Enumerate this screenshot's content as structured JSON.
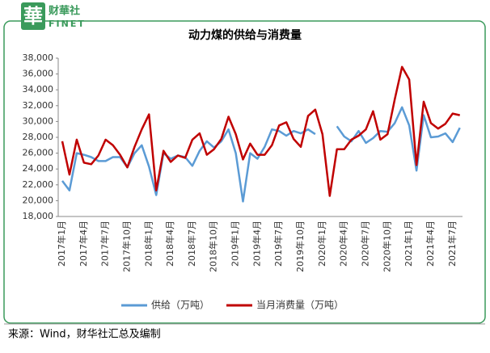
{
  "logo": {
    "mark": "華",
    "name": "财華社",
    "sub": "FINET"
  },
  "chart_data": {
    "type": "line",
    "title": "动力煤的供给与消费量",
    "categories": [
      "2017年1月",
      null,
      null,
      "2017年4月",
      null,
      null,
      "2017年7月",
      null,
      null,
      "2017年10月",
      null,
      null,
      "2018年1月",
      null,
      null,
      "2018年4月",
      null,
      null,
      "2018年7月",
      null,
      null,
      "2018年10月",
      null,
      null,
      "2019年1月",
      null,
      null,
      "2019年4月",
      null,
      null,
      "2019年7月",
      null,
      null,
      "2019年10月",
      null,
      null,
      "2020年1月",
      null,
      null,
      "2020年4月",
      null,
      null,
      "2020年7月",
      null,
      null,
      "2020年10月",
      null,
      null,
      "2021年1月",
      null,
      null,
      "2021年4月",
      null,
      null,
      "2021年7月",
      null
    ],
    "series": [
      {
        "name": "供给（万吨）",
        "color": "#5b9bd5",
        "values": [
          22500,
          21300,
          26000,
          25800,
          25500,
          25000,
          25000,
          25500,
          25500,
          24200,
          26000,
          27000,
          24300,
          20700,
          26000,
          25300,
          25700,
          25500,
          24400,
          26300,
          27500,
          26700,
          27500,
          29000,
          26000,
          19900,
          26000,
          25300,
          26800,
          29000,
          28800,
          28200,
          28800,
          28500,
          29000,
          28400,
          null,
          null,
          29400,
          28100,
          27500,
          28800,
          27300,
          27900,
          28800,
          28700,
          29800,
          31800,
          29500,
          23800,
          30800,
          28000,
          28100,
          28500,
          27400,
          29200
        ]
      },
      {
        "name": "当月消费量（万吨）",
        "color": "#c00000",
        "values": [
          27500,
          23300,
          27700,
          24800,
          24600,
          25700,
          27700,
          27000,
          25800,
          24200,
          26800,
          29000,
          30900,
          21300,
          26300,
          24900,
          25700,
          25400,
          27700,
          28500,
          25800,
          26500,
          27800,
          30600,
          28400,
          25200,
          27200,
          25800,
          25800,
          27000,
          29500,
          29900,
          27800,
          26800,
          30700,
          31500,
          28400,
          20600,
          26500,
          26500,
          27700,
          28200,
          29000,
          31300,
          27700,
          28400,
          32800,
          36900,
          35300,
          24500,
          32500,
          29800,
          29100,
          29700,
          31000,
          30800
        ]
      }
    ],
    "ylim": [
      18000,
      38000
    ],
    "yticks": [
      {
        "value": 18000,
        "label": "18,000"
      },
      {
        "value": 20000,
        "label": "20,000"
      },
      {
        "value": 22000,
        "label": "22,000"
      },
      {
        "value": 24000,
        "label": "24,000"
      },
      {
        "value": 26000,
        "label": "26,000"
      },
      {
        "value": 28000,
        "label": "28,000"
      },
      {
        "value": 30000,
        "label": "30,000"
      },
      {
        "value": 32000,
        "label": "32,000"
      },
      {
        "value": 34000,
        "label": "34,000"
      },
      {
        "value": 36000,
        "label": "36,000"
      },
      {
        "value": 38000,
        "label": "38,000"
      }
    ],
    "grid": false,
    "legend": "bottom",
    "source": "来源：Wind，财华社汇总及编制"
  }
}
